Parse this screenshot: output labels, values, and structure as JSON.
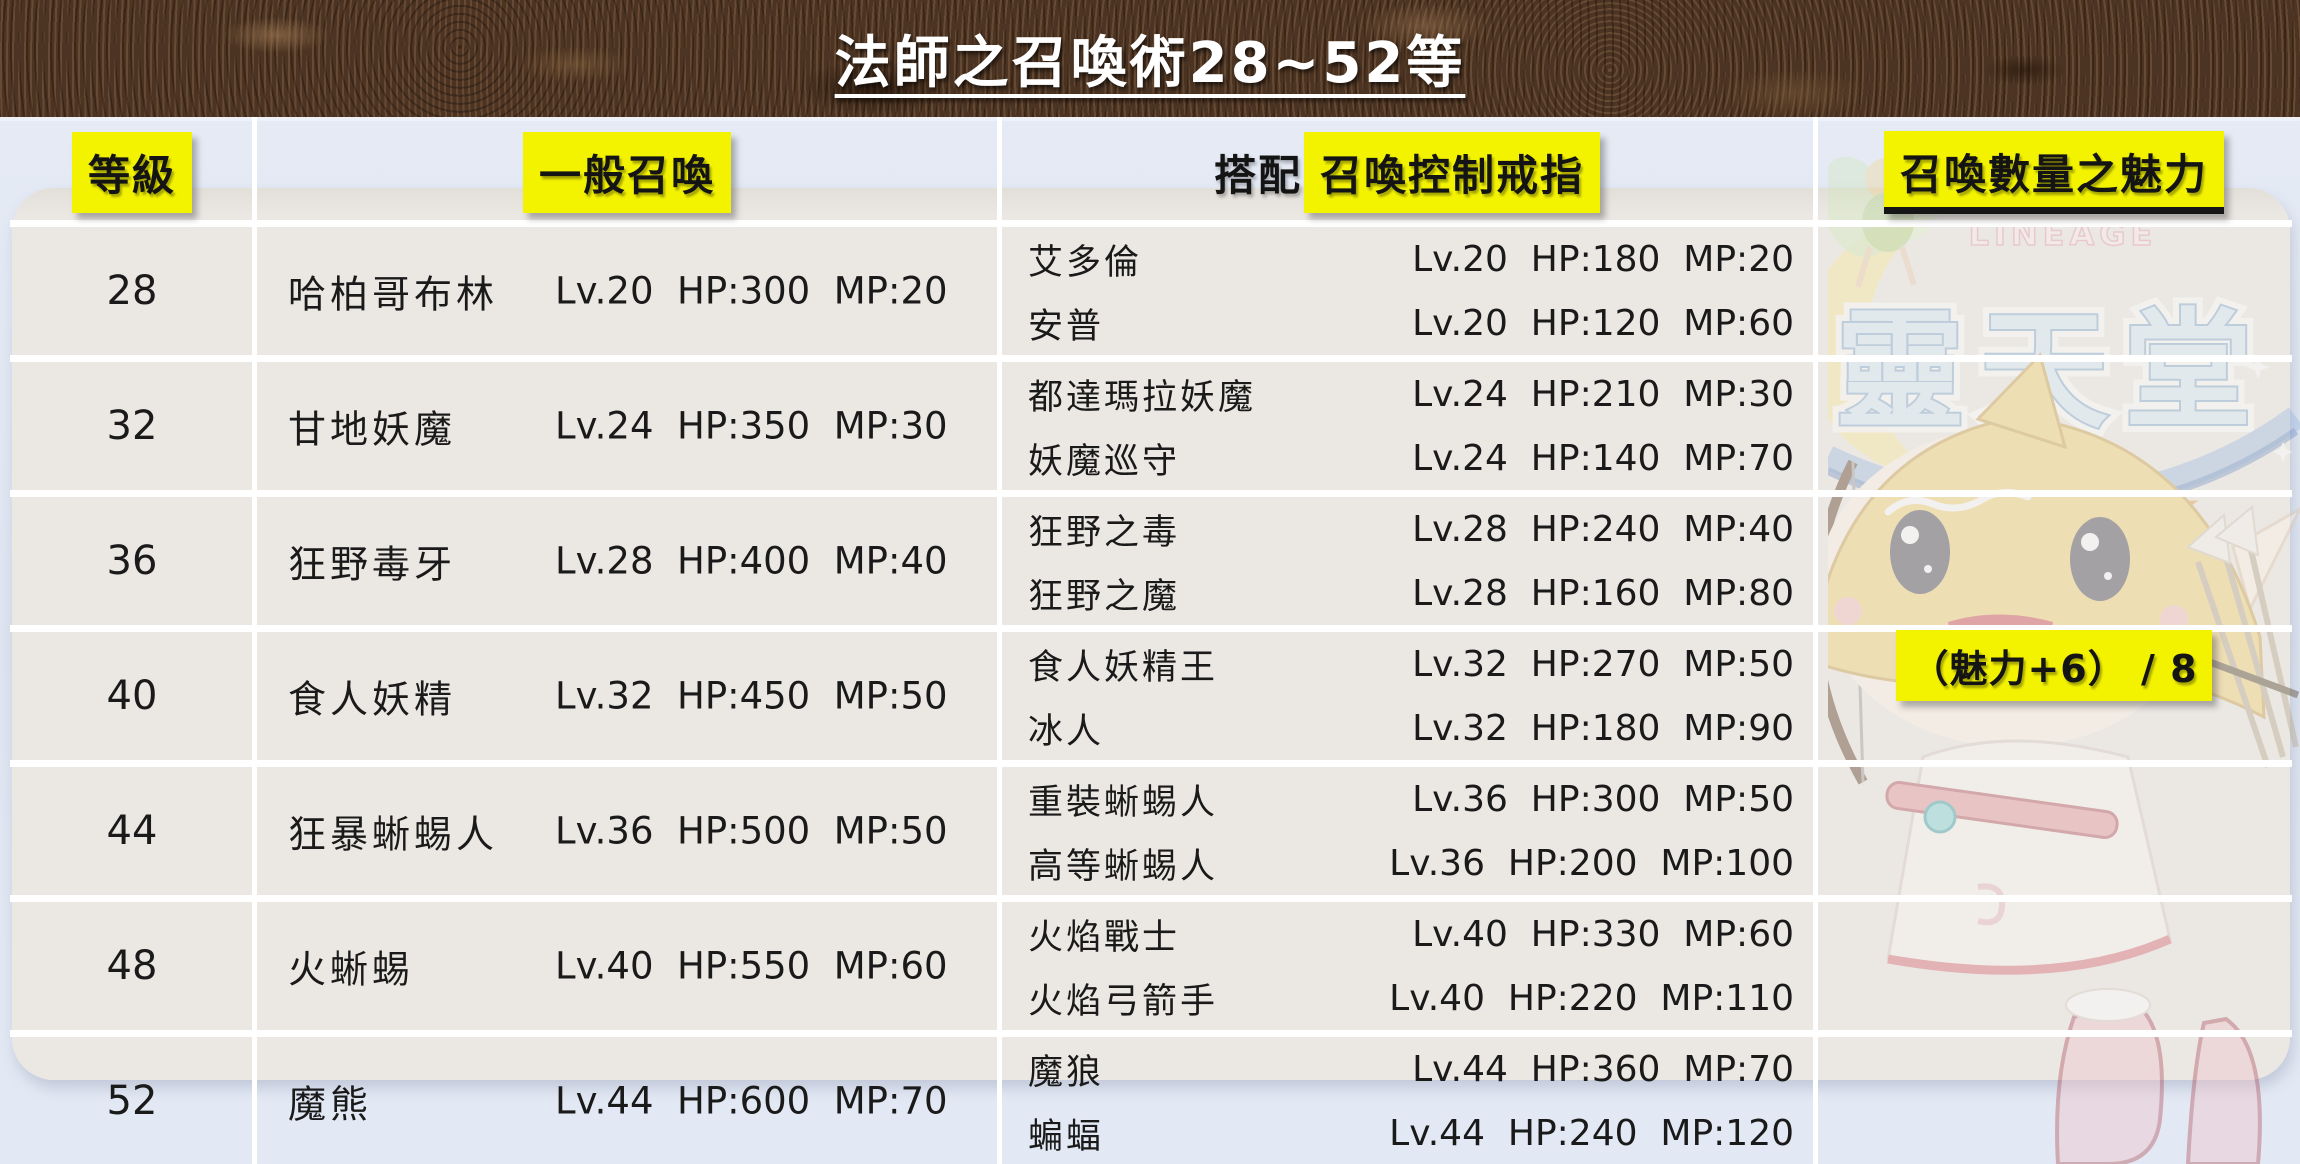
{
  "banner": {
    "title": "法師之召喚術28~52等"
  },
  "table": {
    "headers": {
      "level": "等級",
      "normal": "一般召喚",
      "ring_prefix": "搭配",
      "ring_highlight": "召喚控制戒指",
      "charm": "召喚數量之魅力"
    },
    "rows": [
      {
        "level": "28",
        "normal_name": "哈柏哥布林",
        "normal_stats": "Lv.20  HP:300  MP:20",
        "ring": [
          {
            "name": "艾多倫",
            "stats": "Lv.20  HP:180  MP:20"
          },
          {
            "name": "安普",
            "stats": "Lv.20  HP:120  MP:60"
          }
        ]
      },
      {
        "level": "32",
        "normal_name": "甘地妖魔",
        "normal_stats": "Lv.24  HP:350  MP:30",
        "ring": [
          {
            "name": "都達瑪拉妖魔",
            "stats": "Lv.24  HP:210  MP:30"
          },
          {
            "name": "妖魔巡守",
            "stats": "Lv.24  HP:140  MP:70"
          }
        ]
      },
      {
        "level": "36",
        "normal_name": "狂野毒牙",
        "normal_stats": "Lv.28  HP:400  MP:40",
        "ring": [
          {
            "name": "狂野之毒",
            "stats": "Lv.28  HP:240  MP:40"
          },
          {
            "name": "狂野之魔",
            "stats": "Lv.28  HP:160  MP:80"
          }
        ]
      },
      {
        "level": "40",
        "normal_name": "食人妖精",
        "normal_stats": "Lv.32  HP:450  MP:50",
        "ring": [
          {
            "name": "食人妖精王",
            "stats": "Lv.32  HP:270  MP:50"
          },
          {
            "name": "冰人",
            "stats": "Lv.32  HP:180  MP:90"
          }
        ]
      },
      {
        "level": "44",
        "normal_name": "狂暴蜥蜴人",
        "normal_stats": "Lv.36  HP:500  MP:50",
        "ring": [
          {
            "name": "重裝蜥蜴人",
            "stats": "Lv.36  HP:300  MP:50"
          },
          {
            "name": "高等蜥蜴人",
            "stats": "Lv.36  HP:200  MP:100"
          }
        ]
      },
      {
        "level": "48",
        "normal_name": "火蜥蜴",
        "normal_stats": "Lv.40  HP:550  MP:60",
        "ring": [
          {
            "name": "火焰戰士",
            "stats": "Lv.40  HP:330  MP:60"
          },
          {
            "name": "火焰弓箭手",
            "stats": "Lv.40  HP:220  MP:110"
          }
        ]
      },
      {
        "level": "52",
        "normal_name": "魔熊",
        "normal_stats": "Lv.44  HP:600  MP:70",
        "ring": [
          {
            "name": "魔狼",
            "stats": "Lv.44  HP:360  MP:70"
          },
          {
            "name": "蝙蝠",
            "stats": "Lv.44  HP:240  MP:120"
          }
        ]
      }
    ],
    "charm_note": "（魅力+6） / 8"
  },
  "watermark": {
    "brand_small": "LINEAGE",
    "brand_main": "靈天堂"
  },
  "colors": {
    "highlight_yellow": "#f3f300",
    "banner_brown": "#4d3422",
    "background_blue": "#e2e8f3",
    "panel_gray": "#ebe8e4"
  }
}
